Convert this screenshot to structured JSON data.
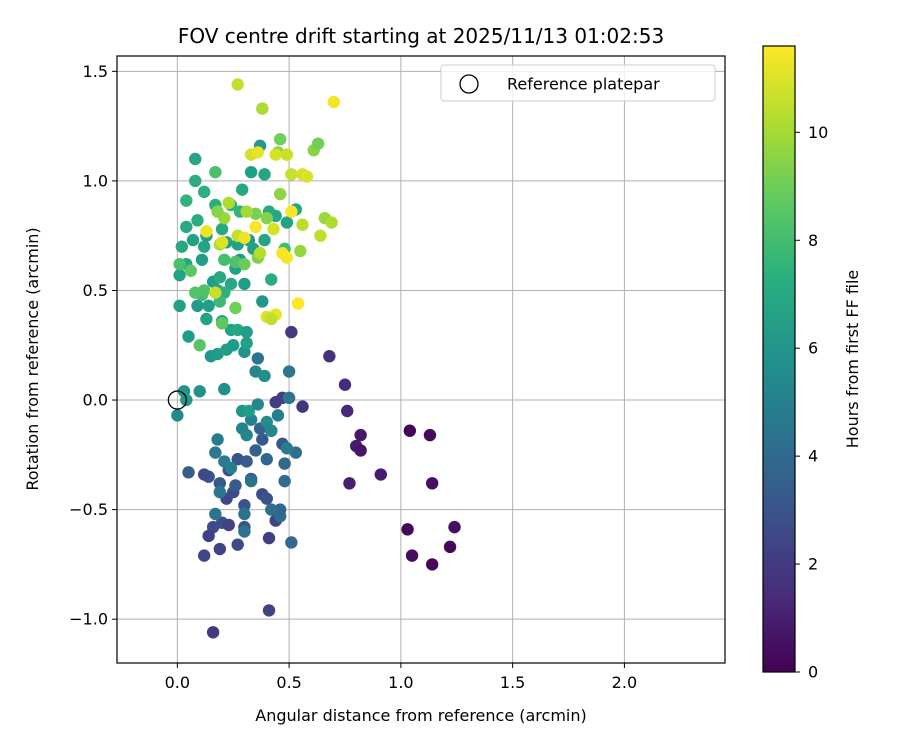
{
  "chart_data": {
    "type": "scatter",
    "title": "FOV centre drift starting at 2025/11/13 01:02:53",
    "xlabel": "Angular distance from reference (arcmin)",
    "ylabel": "Rotation from reference (arcmin)",
    "xlim": [
      -0.27,
      2.45
    ],
    "ylim": [
      -1.2,
      1.57
    ],
    "x_ticks": [
      0.0,
      0.5,
      1.0,
      1.5,
      2.0
    ],
    "x_tick_labels": [
      "0.0",
      "0.5",
      "1.0",
      "1.5",
      "2.0"
    ],
    "y_ticks": [
      -1.0,
      -0.5,
      0.0,
      0.5,
      1.0,
      1.5
    ],
    "y_tick_labels": [
      "−1.0",
      "−0.5",
      "0.0",
      "0.5",
      "1.0",
      "1.5"
    ],
    "grid": true,
    "legend": {
      "position": "top-right",
      "entries": [
        {
          "label": "Reference platepar",
          "marker": "open-circle"
        }
      ]
    },
    "reference_point": {
      "x": 0.0,
      "y": 0.0
    },
    "colorbar": {
      "label": "Hours from first FF file",
      "range": [
        0,
        11.6
      ],
      "ticks": [
        0,
        2,
        4,
        6,
        8,
        10
      ],
      "tick_labels": [
        "0",
        "2",
        "4",
        "6",
        "8",
        "10"
      ],
      "colormap": "viridis"
    },
    "series": [
      {
        "name": "FOV centre positions",
        "points": [
          [
            1.04,
            -0.14,
            0.1
          ],
          [
            1.13,
            -0.16,
            0.3
          ],
          [
            1.03,
            -0.59,
            0.2
          ],
          [
            1.05,
            -0.71,
            0.4
          ],
          [
            1.14,
            -0.75,
            0.3
          ],
          [
            1.22,
            -0.67,
            0.2
          ],
          [
            1.24,
            -0.58,
            0.5
          ],
          [
            1.14,
            -0.38,
            0.5
          ],
          [
            0.91,
            -0.34,
            0.9
          ],
          [
            0.82,
            -0.16,
            0.8
          ],
          [
            0.8,
            -0.21,
            0.9
          ],
          [
            0.82,
            -0.23,
            0.7
          ],
          [
            0.77,
            -0.38,
            1.0
          ],
          [
            0.76,
            -0.05,
            1.3
          ],
          [
            0.75,
            0.07,
            1.5
          ],
          [
            0.68,
            0.2,
            1.6
          ],
          [
            0.51,
            0.31,
            2.0
          ],
          [
            0.56,
            -0.03,
            1.8
          ],
          [
            0.47,
            0.01,
            2.2
          ],
          [
            0.44,
            -0.01,
            2.1
          ],
          [
            0.41,
            -0.96,
            2.3
          ],
          [
            0.16,
            -1.06,
            2.0
          ],
          [
            0.41,
            -0.63,
            2.2
          ],
          [
            0.44,
            -0.55,
            2.4
          ],
          [
            0.12,
            -0.71,
            2.5
          ],
          [
            0.16,
            -0.58,
            2.6
          ],
          [
            0.19,
            -0.68,
            2.4
          ],
          [
            0.14,
            -0.62,
            2.2
          ],
          [
            0.2,
            -0.56,
            2.8
          ],
          [
            0.27,
            -0.66,
            2.6
          ],
          [
            0.23,
            -0.57,
            2.3
          ],
          [
            0.22,
            -0.45,
            2.5
          ],
          [
            0.25,
            -0.42,
            2.7
          ],
          [
            0.3,
            -0.58,
            2.9
          ],
          [
            0.3,
            -0.48,
            3.0
          ],
          [
            0.38,
            -0.43,
            2.8
          ],
          [
            0.33,
            -0.36,
            3.2
          ],
          [
            0.4,
            -0.45,
            3.0
          ],
          [
            0.14,
            -0.35,
            3.1
          ],
          [
            0.12,
            -0.34,
            2.6
          ],
          [
            0.05,
            -0.33,
            3.4
          ],
          [
            0.19,
            -0.38,
            3.2
          ],
          [
            0.23,
            -0.32,
            2.8
          ],
          [
            0.26,
            -0.39,
            3.3
          ],
          [
            0.27,
            -0.27,
            3.0
          ],
          [
            0.31,
            -0.28,
            3.4
          ],
          [
            0.35,
            -0.23,
            3.5
          ],
          [
            0.37,
            -0.13,
            3.6
          ],
          [
            0.38,
            -0.18,
            3.3
          ],
          [
            0.42,
            -0.14,
            3.7
          ],
          [
            0.4,
            -0.27,
            3.8
          ],
          [
            0.47,
            -0.2,
            3.2
          ],
          [
            0.48,
            -0.29,
            3.9
          ],
          [
            0.48,
            -0.37,
            4.0
          ],
          [
            0.53,
            -0.24,
            4.2
          ],
          [
            0.51,
            -0.65,
            4.0
          ],
          [
            0.46,
            -0.53,
            4.1
          ],
          [
            0.46,
            -0.5,
            3.8
          ],
          [
            0.42,
            -0.5,
            4.2
          ],
          [
            0.33,
            -0.37,
            4.3
          ],
          [
            0.3,
            -0.52,
            4.4
          ],
          [
            0.3,
            -0.6,
            4.3
          ],
          [
            0.17,
            -0.52,
            4.5
          ],
          [
            0.17,
            -0.24,
            4.7
          ],
          [
            0.18,
            -0.18,
            4.8
          ],
          [
            0.19,
            -0.42,
            4.6
          ],
          [
            0.21,
            -0.28,
            4.9
          ],
          [
            0.24,
            -0.31,
            5.0
          ],
          [
            0.29,
            -0.13,
            5.2
          ],
          [
            0.31,
            -0.16,
            5.3
          ],
          [
            0.33,
            -0.09,
            5.1
          ],
          [
            0.36,
            -0.02,
            5.4
          ],
          [
            0.4,
            -0.1,
            5.6
          ],
          [
            0.42,
            -0.14,
            5.5
          ],
          [
            0.45,
            -0.07,
            5.0
          ],
          [
            0.49,
            -0.22,
            4.8
          ],
          [
            0.5,
            0.13,
            4.6
          ],
          [
            0.5,
            0.01,
            4.5
          ],
          [
            0.36,
            0.19,
            4.4
          ],
          [
            0.35,
            0.13,
            5.4
          ],
          [
            0.39,
            0.11,
            5.8
          ],
          [
            0.21,
            0.05,
            5.7
          ],
          [
            0.1,
            0.04,
            5.9
          ],
          [
            0.03,
            0.04,
            6.0
          ],
          [
            0.04,
            0.0,
            6.2
          ],
          [
            0.0,
            -0.07,
            5.5
          ],
          [
            0.29,
            -0.05,
            6.0
          ],
          [
            0.32,
            -0.05,
            6.4
          ],
          [
            0.15,
            0.2,
            6.1
          ],
          [
            0.18,
            0.21,
            6.3
          ],
          [
            0.22,
            0.23,
            6.5
          ],
          [
            0.25,
            0.25,
            6.3
          ],
          [
            0.3,
            0.22,
            6.0
          ],
          [
            0.31,
            0.26,
            6.6
          ],
          [
            0.24,
            0.32,
            6.7
          ],
          [
            0.27,
            0.32,
            6.9
          ],
          [
            0.31,
            0.31,
            6.5
          ],
          [
            0.38,
            0.45,
            6.2
          ],
          [
            0.42,
            0.55,
            7.2
          ],
          [
            0.2,
            0.36,
            6.8
          ],
          [
            0.13,
            0.37,
            6.7
          ],
          [
            0.14,
            0.43,
            6.5
          ],
          [
            0.09,
            0.43,
            6.3
          ],
          [
            0.05,
            0.29,
            6.4
          ],
          [
            0.01,
            0.43,
            6.6
          ],
          [
            0.01,
            0.57,
            6.7
          ],
          [
            0.04,
            0.62,
            6.8
          ],
          [
            0.02,
            0.7,
            6.9
          ],
          [
            0.04,
            0.79,
            7.0
          ],
          [
            0.07,
            0.73,
            6.6
          ],
          [
            0.11,
            0.64,
            6.5
          ],
          [
            0.12,
            0.7,
            6.8
          ],
          [
            0.09,
            0.82,
            7.1
          ],
          [
            0.13,
            0.75,
            6.4
          ],
          [
            0.16,
            0.54,
            6.5
          ],
          [
            0.18,
            0.5,
            6.7
          ],
          [
            0.19,
            0.56,
            7.0
          ],
          [
            0.21,
            0.49,
            7.3
          ],
          [
            0.24,
            0.53,
            6.9
          ],
          [
            0.26,
            0.6,
            6.6
          ],
          [
            0.28,
            0.64,
            6.3
          ],
          [
            0.3,
            0.53,
            6.4
          ],
          [
            0.27,
            0.71,
            6.6
          ],
          [
            0.32,
            0.73,
            6.3
          ],
          [
            0.34,
            0.69,
            6.6
          ],
          [
            0.39,
            0.73,
            6.8
          ],
          [
            0.22,
            0.72,
            6.6
          ],
          [
            0.2,
            0.78,
            6.9
          ],
          [
            0.17,
            0.89,
            7.2
          ],
          [
            0.12,
            0.95,
            7.3
          ],
          [
            0.08,
            1.0,
            7.1
          ],
          [
            0.08,
            1.1,
            6.8
          ],
          [
            0.04,
            0.91,
            7.5
          ],
          [
            0.24,
            0.89,
            7.4
          ],
          [
            0.28,
            0.86,
            7.6
          ],
          [
            0.29,
            0.96,
            6.9
          ],
          [
            0.33,
            1.04,
            6.5
          ],
          [
            0.37,
            1.16,
            6.2
          ],
          [
            0.39,
            1.03,
            6.8
          ],
          [
            0.41,
            0.86,
            7.0
          ],
          [
            0.44,
            0.84,
            6.9
          ],
          [
            0.49,
            0.81,
            6.7
          ],
          [
            0.53,
            0.87,
            6.8
          ],
          [
            0.48,
            0.69,
            8.0
          ],
          [
            0.17,
            1.04,
            8.2
          ],
          [
            0.11,
            0.48,
            8.0
          ],
          [
            0.12,
            0.5,
            8.3
          ],
          [
            0.08,
            0.49,
            8.4
          ],
          [
            0.1,
            0.25,
            8.5
          ],
          [
            0.06,
            0.59,
            8.6
          ],
          [
            0.01,
            0.62,
            8.2
          ],
          [
            0.2,
            0.35,
            8.7
          ],
          [
            0.19,
            0.45,
            7.9
          ],
          [
            0.21,
            0.64,
            8.1
          ],
          [
            0.26,
            0.63,
            8.3
          ],
          [
            0.3,
            0.62,
            8.9
          ],
          [
            0.26,
            0.42,
            9.0
          ],
          [
            0.36,
            0.65,
            9.3
          ],
          [
            0.35,
            0.85,
            9.2
          ],
          [
            0.4,
            0.83,
            9.4
          ],
          [
            0.46,
            0.94,
            9.6
          ],
          [
            0.46,
            1.19,
            9.0
          ],
          [
            0.45,
            1.13,
            9.4
          ],
          [
            0.55,
            0.68,
            9.7
          ],
          [
            0.61,
            1.14,
            9.5
          ],
          [
            0.63,
            1.17,
            9.1
          ],
          [
            0.66,
            0.83,
            9.8
          ],
          [
            0.69,
            0.81,
            10.2
          ],
          [
            0.64,
            0.75,
            10.5
          ],
          [
            0.56,
            0.8,
            10.4
          ],
          [
            0.51,
            1.03,
            10.6
          ],
          [
            0.56,
            1.03,
            10.8
          ],
          [
            0.58,
            1.02,
            11.0
          ],
          [
            0.49,
            1.12,
            11.1
          ],
          [
            0.49,
            1.12,
            10.7
          ],
          [
            0.44,
            1.12,
            10.9
          ],
          [
            0.38,
            1.33,
            10.1
          ],
          [
            0.27,
            1.44,
            10.6
          ],
          [
            0.7,
            1.36,
            11.4
          ],
          [
            0.33,
            1.12,
            10.8
          ],
          [
            0.36,
            1.13,
            11.2
          ],
          [
            0.23,
            0.9,
            10.2
          ],
          [
            0.31,
            0.86,
            10.0
          ],
          [
            0.27,
            0.75,
            10.6
          ],
          [
            0.3,
            0.74,
            11.3
          ],
          [
            0.35,
            0.79,
            11.5
          ],
          [
            0.37,
            0.67,
            10.3
          ],
          [
            0.43,
            0.78,
            10.9
          ],
          [
            0.47,
            0.67,
            11.4
          ],
          [
            0.49,
            0.65,
            11.5
          ],
          [
            0.51,
            0.86,
            11.5
          ],
          [
            0.54,
            0.44,
            11.6
          ],
          [
            0.44,
            0.39,
            11.2
          ],
          [
            0.4,
            0.38,
            11.0
          ],
          [
            0.42,
            0.37,
            10.5
          ],
          [
            0.17,
            0.49,
            10.6
          ],
          [
            0.19,
            0.71,
            10.2
          ],
          [
            0.2,
            0.72,
            11.0
          ],
          [
            0.13,
            0.77,
            11.3
          ],
          [
            0.21,
            0.83,
            9.8
          ],
          [
            0.18,
            0.86,
            9.5
          ]
        ]
      }
    ]
  }
}
